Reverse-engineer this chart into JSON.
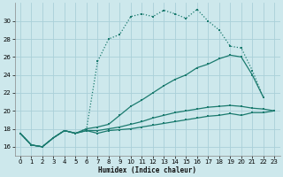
{
  "xlabel": "Humidex (Indice chaleur)",
  "xlim": [
    -0.5,
    23.5
  ],
  "ylim": [
    15.0,
    32.0
  ],
  "xticks": [
    0,
    1,
    2,
    3,
    4,
    5,
    6,
    7,
    8,
    9,
    10,
    11,
    12,
    13,
    14,
    15,
    16,
    17,
    18,
    19,
    20,
    21,
    22,
    23
  ],
  "yticks": [
    16,
    18,
    20,
    22,
    24,
    26,
    28,
    30
  ],
  "background_color": "#cde8ec",
  "grid_color": "#aad0d8",
  "line_color": "#1a7a6e",
  "line1_x": [
    0,
    1,
    2,
    3,
    4,
    5,
    6,
    7,
    8,
    9,
    10,
    11,
    12,
    13,
    14,
    15,
    16,
    17,
    18,
    19,
    20,
    21,
    22
  ],
  "line1_y": [
    17.5,
    16.2,
    16.0,
    17.0,
    17.8,
    17.5,
    18.0,
    25.5,
    28.0,
    28.5,
    30.5,
    30.8,
    30.5,
    31.2,
    30.8,
    30.3,
    31.3,
    30.0,
    29.0,
    27.2,
    27.0,
    24.5,
    21.5
  ],
  "line2_x": [
    0,
    1,
    2,
    3,
    4,
    5,
    6,
    7,
    8,
    9,
    10,
    11,
    12,
    13,
    14,
    15,
    16,
    17,
    18,
    19,
    20,
    21,
    22
  ],
  "line2_y": [
    17.5,
    16.2,
    16.0,
    17.0,
    17.8,
    17.5,
    18.0,
    18.2,
    18.5,
    19.5,
    20.5,
    21.2,
    22.0,
    22.8,
    23.5,
    24.0,
    24.8,
    25.2,
    25.8,
    26.2,
    26.0,
    24.0,
    21.5
  ],
  "line3_x": [
    0,
    1,
    2,
    3,
    4,
    5,
    6,
    7,
    8,
    9,
    10,
    11,
    12,
    13,
    14,
    15,
    16,
    17,
    18,
    19,
    20,
    21,
    22,
    23
  ],
  "line3_y": [
    17.5,
    16.2,
    16.0,
    17.0,
    17.8,
    17.5,
    17.8,
    17.8,
    18.0,
    18.2,
    18.5,
    18.8,
    19.2,
    19.5,
    19.8,
    20.0,
    20.2,
    20.4,
    20.5,
    20.6,
    20.5,
    20.3,
    20.2,
    20.0
  ],
  "line4_x": [
    0,
    1,
    2,
    3,
    4,
    5,
    6,
    7,
    8,
    9,
    10,
    11,
    12,
    13,
    14,
    15,
    16,
    17,
    18,
    19,
    20,
    21,
    22,
    23
  ],
  "line4_y": [
    17.5,
    16.2,
    16.0,
    17.0,
    17.8,
    17.5,
    17.8,
    17.5,
    17.8,
    17.9,
    18.0,
    18.2,
    18.4,
    18.6,
    18.8,
    19.0,
    19.2,
    19.4,
    19.5,
    19.7,
    19.5,
    19.8,
    19.8,
    20.0
  ]
}
